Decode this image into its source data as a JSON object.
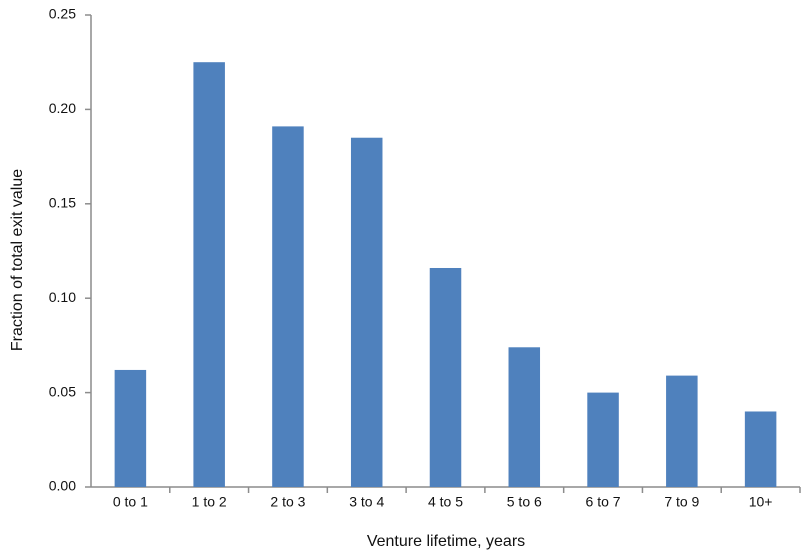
{
  "chart_data": {
    "type": "bar",
    "x_label": "Venture lifetime, years",
    "y_label": "Fraction of total exit value",
    "categories": [
      "0 to 1",
      "1 to 2",
      "2 to 3",
      "3 to 4",
      "4 to 5",
      "5 to 6",
      "6 to 7",
      "7 to 9",
      "10+"
    ],
    "values": [
      0.062,
      0.225,
      0.191,
      0.185,
      0.116,
      0.074,
      0.05,
      0.059,
      0.04
    ],
    "color": "#4f81bd",
    "ylim": [
      0,
      0.25
    ],
    "yticks": [
      {
        "value": 0,
        "label": "0.00"
      },
      0.05,
      {
        "value": 0.1,
        "label": "0.10"
      },
      0.15,
      {
        "value": 0.2,
        "label": "0.20"
      },
      0.25
    ],
    "grid": false
  }
}
